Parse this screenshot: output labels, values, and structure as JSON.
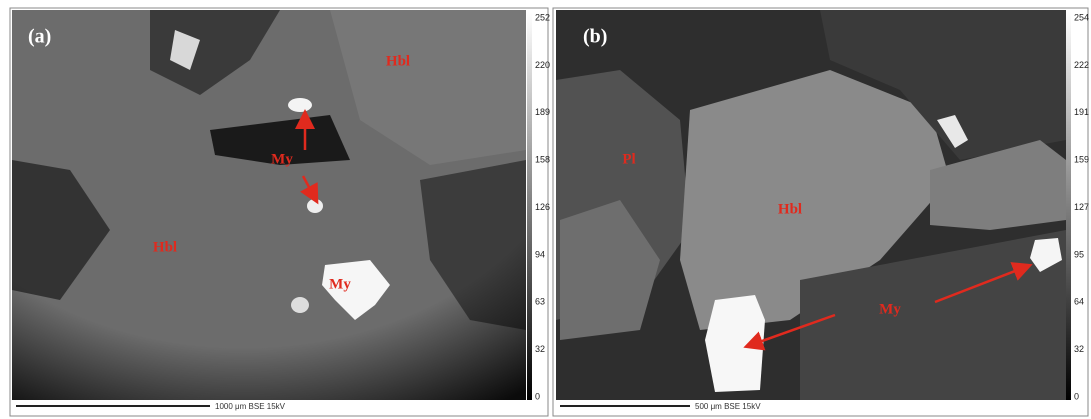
{
  "panels": [
    {
      "label": "(a)",
      "scale_ticks": [
        "252",
        "220",
        "189",
        "158",
        "126",
        "94",
        "63",
        "32",
        "0"
      ],
      "footer": "1000 μm BSE 15kV",
      "annotations": [
        "Hbl",
        "My",
        "Hbl",
        "My"
      ]
    },
    {
      "label": "(b)",
      "scale_ticks": [
        "254",
        "222",
        "191",
        "159",
        "127",
        "95",
        "64",
        "32",
        "0"
      ],
      "footer": "500 μm BSE 15kV",
      "annotations": [
        "Pl",
        "Hbl",
        "My"
      ]
    }
  ]
}
